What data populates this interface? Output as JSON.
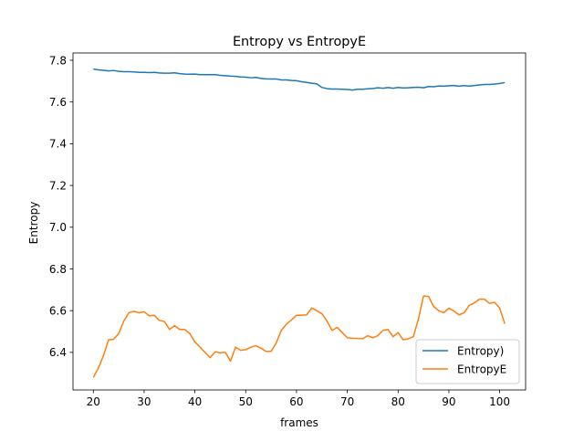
{
  "chart_data": {
    "type": "line",
    "title": "Entropy vs EntropyE",
    "xlabel": "frames",
    "ylabel": "Entropy",
    "xlim": [
      16.0,
      105.1
    ],
    "ylim": [
      6.22,
      7.835
    ],
    "xticks": [
      20,
      30,
      40,
      50,
      60,
      70,
      80,
      90,
      100
    ],
    "yticks": [
      6.4,
      6.6,
      6.8,
      7.0,
      7.2,
      7.4,
      7.6,
      7.8
    ],
    "ytick_labels": [
      "6.4",
      "6.6",
      "6.8",
      "7.0",
      "7.2",
      "7.4",
      "7.6",
      "7.8"
    ],
    "grid": false,
    "legend_position": "lower-right",
    "x": [
      20,
      21,
      22,
      23,
      24,
      25,
      26,
      27,
      28,
      29,
      30,
      31,
      32,
      33,
      34,
      35,
      36,
      37,
      38,
      39,
      40,
      41,
      42,
      43,
      44,
      45,
      46,
      47,
      48,
      49,
      50,
      51,
      52,
      53,
      54,
      55,
      56,
      57,
      58,
      59,
      60,
      61,
      62,
      63,
      64,
      65,
      66,
      67,
      68,
      69,
      70,
      71,
      72,
      73,
      74,
      75,
      76,
      77,
      78,
      79,
      80,
      81,
      82,
      83,
      84,
      85,
      86,
      87,
      88,
      89,
      90,
      91,
      92,
      93,
      94,
      95,
      96,
      97,
      98,
      99,
      100,
      101
    ],
    "series": [
      {
        "name": "Entropy)",
        "color": "#1f77b4",
        "values": [
          7.758,
          7.754,
          7.752,
          7.749,
          7.751,
          7.747,
          7.745,
          7.745,
          7.744,
          7.742,
          7.742,
          7.741,
          7.742,
          7.739,
          7.738,
          7.738,
          7.74,
          7.736,
          7.734,
          7.733,
          7.734,
          7.731,
          7.731,
          7.731,
          7.731,
          7.728,
          7.726,
          7.724,
          7.723,
          7.72,
          7.719,
          7.716,
          7.718,
          7.713,
          7.711,
          7.71,
          7.71,
          7.706,
          7.706,
          7.703,
          7.702,
          7.697,
          7.694,
          7.69,
          7.687,
          7.67,
          7.664,
          7.662,
          7.662,
          7.661,
          7.66,
          7.657,
          7.661,
          7.661,
          7.663,
          7.665,
          7.668,
          7.666,
          7.669,
          7.666,
          7.67,
          7.667,
          7.668,
          7.67,
          7.671,
          7.668,
          7.674,
          7.673,
          7.677,
          7.676,
          7.678,
          7.679,
          7.676,
          7.679,
          7.676,
          7.679,
          7.682,
          7.684,
          7.684,
          7.686,
          7.689,
          7.693
        ]
      },
      {
        "name": "EntropyE",
        "color": "#ff7f0e",
        "values": [
          6.28,
          6.325,
          6.385,
          6.46,
          6.463,
          6.49,
          6.55,
          6.59,
          6.597,
          6.59,
          6.595,
          6.575,
          6.578,
          6.553,
          6.548,
          6.51,
          6.528,
          6.51,
          6.51,
          6.49,
          6.45,
          6.425,
          6.4,
          6.375,
          6.403,
          6.398,
          6.4,
          6.358,
          6.425,
          6.41,
          6.413,
          6.425,
          6.432,
          6.42,
          6.405,
          6.405,
          6.445,
          6.505,
          6.535,
          6.555,
          6.578,
          6.578,
          6.58,
          6.613,
          6.6,
          6.585,
          6.55,
          6.505,
          6.52,
          6.495,
          6.47,
          6.468,
          6.467,
          6.465,
          6.48,
          6.47,
          6.48,
          6.505,
          6.51,
          6.475,
          6.495,
          6.46,
          6.465,
          6.475,
          6.56,
          6.67,
          6.668,
          6.62,
          6.6,
          6.59,
          6.612,
          6.598,
          6.58,
          6.59,
          6.625,
          6.637,
          6.655,
          6.655,
          6.635,
          6.64,
          6.612,
          6.537
        ]
      }
    ]
  }
}
